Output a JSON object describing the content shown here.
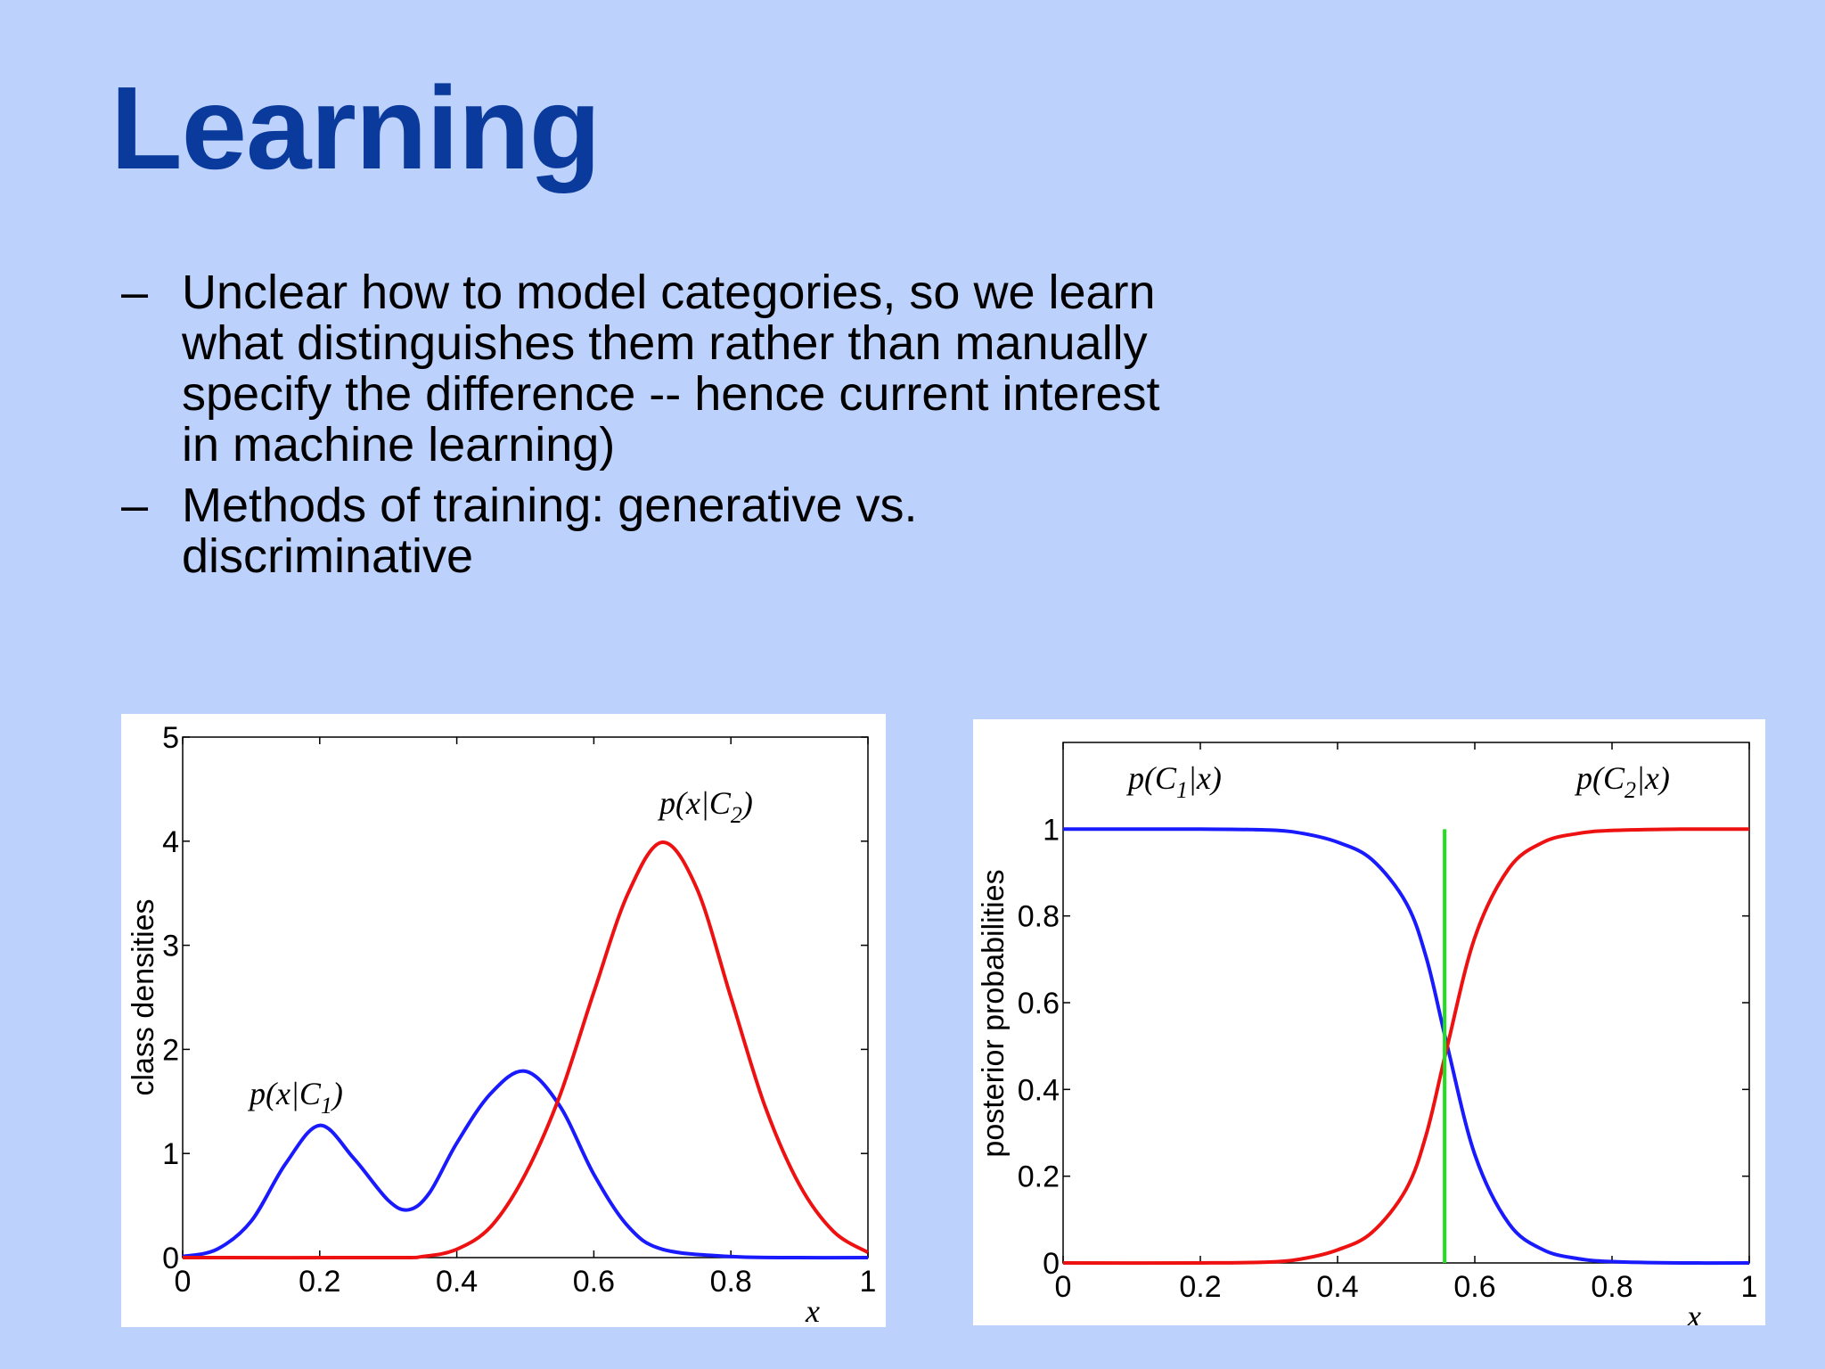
{
  "slide": {
    "title": "Learning",
    "bullets": [
      {
        "dash": "–",
        "text": "Unclear how to model categories, so we learn what distinguishes them rather than manually specify the difference -- hence current interest in machine learning)"
      },
      {
        "dash": "–",
        "text": "Methods of training: generative vs. discriminative"
      }
    ]
  },
  "chart_data": [
    {
      "type": "line",
      "xlabel": "x",
      "ylabel": "class densities",
      "xlim": [
        0,
        1
      ],
      "ylim": [
        0,
        5
      ],
      "xticks": [
        "0",
        "0.2",
        "0.4",
        "0.6",
        "0.8",
        "1"
      ],
      "yticks": [
        "0",
        "1",
        "2",
        "3",
        "4",
        "5"
      ],
      "series": [
        {
          "name": "p(x|C1)",
          "color": "#1a1aff",
          "x": [
            0,
            0.05,
            0.1,
            0.15,
            0.2,
            0.25,
            0.3,
            0.33,
            0.36,
            0.4,
            0.45,
            0.5,
            0.55,
            0.6,
            0.65,
            0.7,
            0.8,
            0.9,
            1.0
          ],
          "y": [
            0.01,
            0.08,
            0.35,
            0.9,
            1.27,
            0.95,
            0.55,
            0.46,
            0.62,
            1.1,
            1.58,
            1.79,
            1.46,
            0.8,
            0.3,
            0.08,
            0.01,
            0.0,
            0.0
          ]
        },
        {
          "name": "p(x|C2)",
          "color": "#ee1111",
          "x": [
            0,
            0.3,
            0.35,
            0.4,
            0.45,
            0.5,
            0.55,
            0.6,
            0.65,
            0.7,
            0.75,
            0.8,
            0.85,
            0.9,
            0.95,
            1.0
          ],
          "y": [
            0,
            0.0,
            0.01,
            0.08,
            0.3,
            0.8,
            1.55,
            2.55,
            3.5,
            3.99,
            3.55,
            2.5,
            1.45,
            0.7,
            0.25,
            0.05
          ]
        }
      ],
      "annotations": [
        {
          "series": "p(x|C1)",
          "text": "p(x|C",
          "sub": "1",
          "tail": ")"
        },
        {
          "series": "p(x|C2)",
          "text": "p(x|C",
          "sub": "2",
          "tail": ")"
        }
      ]
    },
    {
      "type": "line",
      "xlabel": "x",
      "ylabel": "posterior probabilities",
      "xlim": [
        0,
        1
      ],
      "ylim": [
        0,
        1.2
      ],
      "xticks": [
        "0",
        "0.2",
        "0.4",
        "0.6",
        "0.8",
        "1"
      ],
      "yticks": [
        "0",
        "0.2",
        "0.4",
        "0.6",
        "0.8",
        "1"
      ],
      "series": [
        {
          "name": "p(C1|x)",
          "color": "#1a1aff",
          "x": [
            0,
            0.2,
            0.3,
            0.35,
            0.4,
            0.45,
            0.5,
            0.53,
            0.56,
            0.6,
            0.65,
            0.7,
            0.75,
            0.8,
            0.9,
            1.0
          ],
          "y": [
            1.0,
            1.0,
            0.998,
            0.99,
            0.97,
            0.93,
            0.83,
            0.7,
            0.5,
            0.25,
            0.09,
            0.03,
            0.01,
            0.003,
            0.0,
            0.0
          ]
        },
        {
          "name": "p(C2|x)",
          "color": "#ee1111",
          "x": [
            0,
            0.2,
            0.3,
            0.35,
            0.4,
            0.45,
            0.5,
            0.53,
            0.56,
            0.6,
            0.65,
            0.7,
            0.75,
            0.8,
            0.9,
            1.0
          ],
          "y": [
            0.0,
            0.0,
            0.002,
            0.01,
            0.03,
            0.07,
            0.17,
            0.3,
            0.5,
            0.75,
            0.91,
            0.97,
            0.99,
            0.997,
            1.0,
            1.0
          ]
        }
      ],
      "decision_boundary": {
        "x": 0.556,
        "y_top": 1.0,
        "color": "#22dd22"
      },
      "annotations": [
        {
          "series": "p(C1|x)",
          "text": "p(C",
          "sub": "1",
          "tail": "|x)"
        },
        {
          "series": "p(C2|x)",
          "text": "p(C",
          "sub": "2",
          "tail": "|x)"
        }
      ]
    }
  ]
}
